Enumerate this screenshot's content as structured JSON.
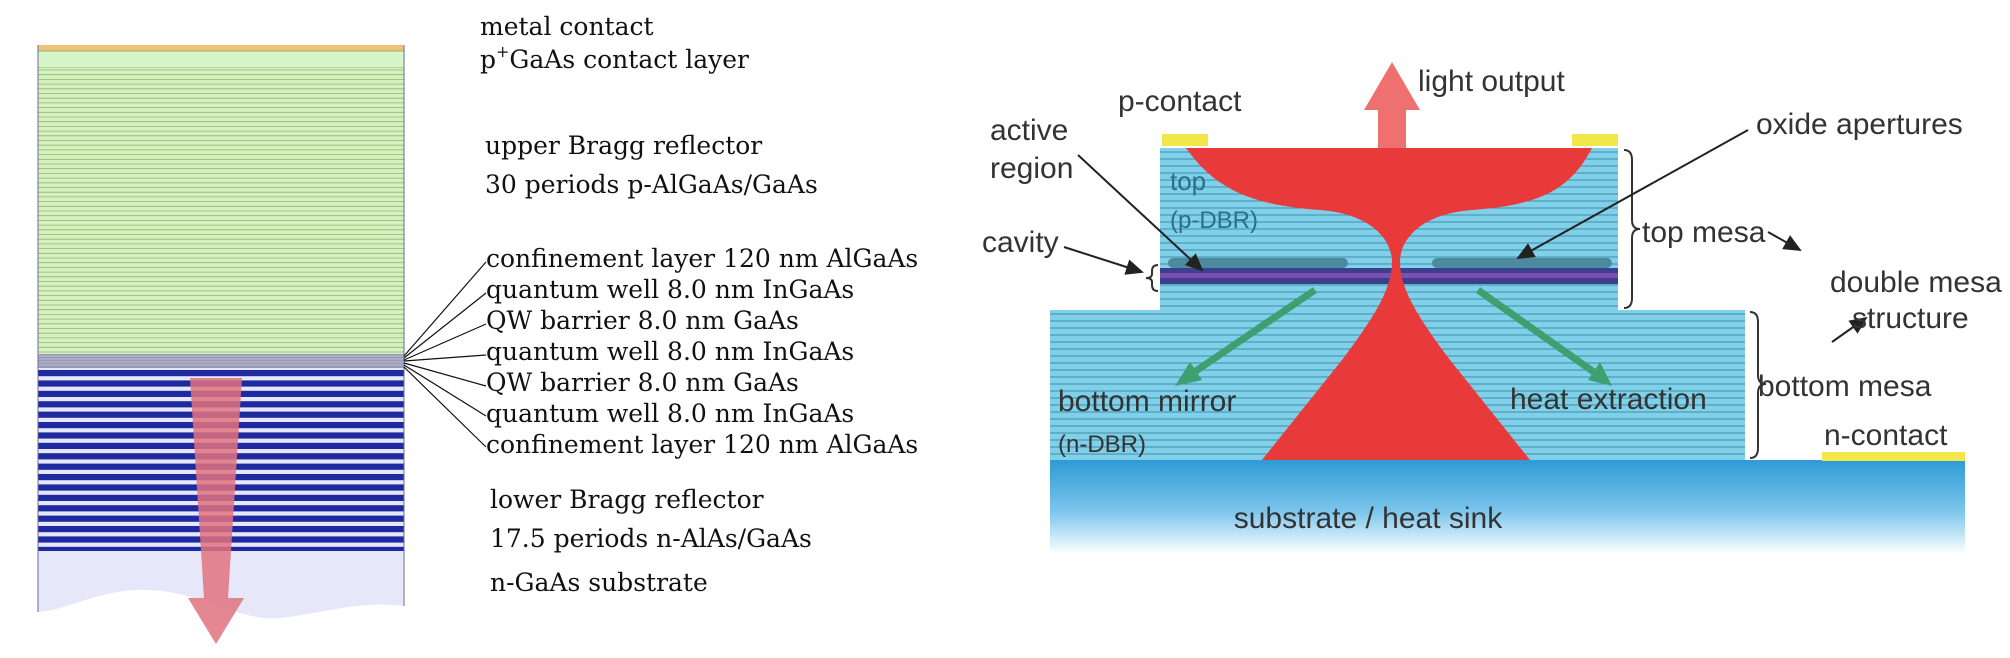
{
  "left_panel": {
    "labels": {
      "metal_contact": "metal contact",
      "contact_layer_prefix": "p",
      "contact_layer_sup": "+",
      "contact_layer_rest": "GaAs contact  layer",
      "upper_bragg": "upper Bragg reflector",
      "upper_bragg_periods": "30 periods p-AlGaAs/GaAs",
      "lower_bragg": "lower Bragg reflector",
      "lower_bragg_periods": "17.5 periods n-AlAs/GaAs",
      "substrate": "n-GaAs substrate"
    },
    "active_layers": [
      "confinement layer 120 nm AlGaAs",
      "quantum well  8.0 nm InGaAs",
      "QW barrier 8.0 nm GaAs",
      "quantum well  8.0 nm InGaAs",
      "QW barrier 8.0 nm GaAs",
      "quantum well  8.0 nm InGaAs",
      "confinement layer 120 nm AlGaAs"
    ],
    "upper_bragg_periods_count": 30,
    "lower_bragg_periods_count": 17.5,
    "colors": {
      "metal": "#f2c27a",
      "contact": "#d6f5c8",
      "upper_dbr": "#d6f0c2",
      "upper_dbr_line": "#8bb86a",
      "active": "#9a9ab8",
      "lower_dbr": "#1f2aa0",
      "lower_dbr_gap": "#e6e8fa",
      "substrate": "#e6e8fa",
      "arrow": "#e0727e"
    }
  },
  "right_panel": {
    "labels": {
      "p_contact": "p-contact",
      "light_output": "light output",
      "active_region_line1": "active",
      "active_region_line2": "region",
      "cavity": "cavity",
      "oxide_apertures": "oxide apertures",
      "top_line1": "top",
      "top_line2": "(p-DBR)",
      "top_mesa": "top mesa",
      "double_mesa_line1": "double mesa",
      "double_mesa_line2": "structure",
      "bottom_mirror": "bottom mirror",
      "bottom_mirror_sub": "(n-DBR)",
      "heat_extraction": "heat extraction",
      "bottom_mesa": "bottom mesa",
      "n_contact": "n-contact",
      "substrate": "substrate / heat sink"
    },
    "colors": {
      "dbr": "#7fd0e8",
      "dbr_line": "#2a6f8c",
      "current": "#e83a3a",
      "substrate": "#3aa7dc",
      "contact": "#f1e64a",
      "cavity": "#3c3f8e",
      "oxide": "#4d8aa0",
      "heat_arrow": "#3ea070"
    }
  }
}
